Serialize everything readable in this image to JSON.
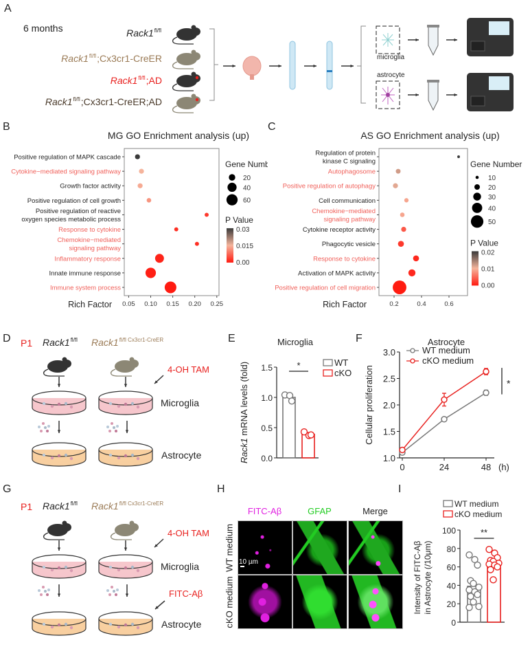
{
  "panel_labels": [
    "A",
    "B",
    "C",
    "D",
    "E",
    "F",
    "G",
    "H",
    "I"
  ],
  "panel_a": {
    "time": "6 months",
    "genotypes": [
      {
        "name": "Rack1",
        "sup": "fl/fl",
        "suffix": "",
        "color": "#222222"
      },
      {
        "name": "Rack1",
        "sup": "fl/fl",
        "suffix": ";Cx3cr1-CreER",
        "color": "#9a7a55"
      },
      {
        "name": "Rack1",
        "sup": "fl/fl",
        "suffix": ";AD",
        "color": "#e8201e"
      },
      {
        "name": "Rack1",
        "sup": "fl/fl",
        "suffix": ";Cx3cr1-CreER;AD",
        "color": "#4a3a2a"
      }
    ],
    "microglia": "microglia",
    "astrocyte": "astrocyte"
  },
  "panel_d": {
    "age": "P1",
    "geno1": {
      "name": "Rack1",
      "sup": "fl/fl"
    },
    "geno2": {
      "name": "Rack1",
      "sup": "fl/fl Cx3cr1-CreER"
    },
    "treatment": "4-OH TAM",
    "microglia": "Microglia",
    "astrocyte": "Astrocyte"
  },
  "panel_g": {
    "age": "P1",
    "geno1": {
      "name": "Rack1",
      "sup": "fl/fl"
    },
    "geno2": {
      "name": "Rack1",
      "sup": "fl/fl Cx3cr1-CreER"
    },
    "treatment": "4-OH TAM",
    "treatment2": "FITC-Aβ",
    "microglia": "Microglia",
    "astrocyte": "Astrocyte"
  },
  "panel_h": {
    "columns": [
      {
        "label": "FITC-Aβ",
        "color": "#e020e0"
      },
      {
        "label": "GFAP",
        "color": "#22cc22"
      },
      {
        "label": "Merge",
        "color": "#222222"
      }
    ],
    "rows": [
      "WT medium",
      "cKO medium"
    ],
    "scale_bar": "10 µm"
  },
  "colors": {
    "red": "#e8201e",
    "highlight_label": "#f0605a",
    "grey": "#777777",
    "pval_low": "#ff1a10",
    "pval_mid": "#f5b49c",
    "pval_high": "#3a3a3a"
  },
  "chart_data": [
    {
      "panel": "B",
      "type": "scatter",
      "title": "MG GO Enrichment analysis (up)",
      "xlabel": "Rich Factor",
      "xlim": [
        0.04,
        0.255
      ],
      "xticks": [
        0.05,
        0.1,
        0.15,
        0.2,
        0.25
      ],
      "xtick_labels": [
        "0.05",
        "0.10",
        "0.15",
        "0.20",
        "0.25"
      ],
      "size_legend_title": "Gene Number",
      "size_legend": [
        20,
        40,
        60
      ],
      "color_legend_title": "P Value",
      "color_range": [
        0,
        0.03
      ],
      "color_ticks": [
        "0.03",
        "0.015",
        "0.00"
      ],
      "points": [
        {
          "term": [
            "Positive regulation of MAPK cascade"
          ],
          "highlight": false,
          "rich_factor": 0.07,
          "gene_number": 12,
          "p_value": 0.03
        },
        {
          "term": [
            "Cytokine−mediated signaling pathway"
          ],
          "highlight": true,
          "rich_factor": 0.079,
          "gene_number": 12,
          "p_value": 0.015
        },
        {
          "term": [
            "Growth factor activity"
          ],
          "highlight": false,
          "rich_factor": 0.076,
          "gene_number": 12,
          "p_value": 0.014
        },
        {
          "term": [
            "Positive regulation of cell growth"
          ],
          "highlight": false,
          "rich_factor": 0.096,
          "gene_number": 10,
          "p_value": 0.012
        },
        {
          "term": [
            "Positive regulation of reactive",
            "oxygen species metabolic process"
          ],
          "highlight": false,
          "rich_factor": 0.227,
          "gene_number": 8,
          "p_value": 0.003
        },
        {
          "term": [
            "Response to cytokine"
          ],
          "highlight": true,
          "rich_factor": 0.158,
          "gene_number": 8,
          "p_value": 0.002
        },
        {
          "term": [
            "Chemokine−mediated",
            "signaling pathway"
          ],
          "highlight": true,
          "rich_factor": 0.205,
          "gene_number": 8,
          "p_value": 0.002
        },
        {
          "term": [
            "Inflammatory response"
          ],
          "highlight": true,
          "rich_factor": 0.12,
          "gene_number": 38,
          "p_value": 0.001
        },
        {
          "term": [
            "Innate immune response"
          ],
          "highlight": false,
          "rich_factor": 0.1,
          "gene_number": 52,
          "p_value": 0.0005
        },
        {
          "term": [
            "Immune system process"
          ],
          "highlight": true,
          "rich_factor": 0.145,
          "gene_number": 66,
          "p_value": 0.0001
        }
      ]
    },
    {
      "panel": "C",
      "type": "scatter",
      "title": "AS GO Enrichment analysis (up)",
      "xlabel": "Rich Factor",
      "xlim": [
        0.09,
        0.735
      ],
      "xticks": [
        0.2,
        0.4,
        0.6
      ],
      "xtick_labels": [
        "0.2",
        "0.4",
        "0.6"
      ],
      "size_legend_title": "Gene Number",
      "size_legend": [
        10,
        20,
        30,
        40,
        50
      ],
      "color_legend_title": "P Value",
      "color_range": [
        0,
        0.02
      ],
      "color_ticks": [
        "0.02",
        "0.01",
        "0.00"
      ],
      "points": [
        {
          "term": [
            "Regulation of protein",
            "kinase C signaling"
          ],
          "highlight": false,
          "rich_factor": 0.67,
          "gene_number": 8,
          "p_value": 0.02
        },
        {
          "term": [
            "Autophagosome"
          ],
          "highlight": true,
          "rich_factor": 0.23,
          "gene_number": 17,
          "p_value": 0.012
        },
        {
          "term": [
            "Positive regulation of autophagy"
          ],
          "highlight": true,
          "rich_factor": 0.21,
          "gene_number": 18,
          "p_value": 0.011
        },
        {
          "term": [
            "Cell communication"
          ],
          "highlight": false,
          "rich_factor": 0.29,
          "gene_number": 15,
          "p_value": 0.009
        },
        {
          "term": [
            "Chemokine−mediated",
            "signaling pathway"
          ],
          "highlight": true,
          "rich_factor": 0.26,
          "gene_number": 16,
          "p_value": 0.009
        },
        {
          "term": [
            "Cytokine receptor activity"
          ],
          "highlight": false,
          "rich_factor": 0.27,
          "gene_number": 18,
          "p_value": 0.004
        },
        {
          "term": [
            "Phagocytic vesicle"
          ],
          "highlight": false,
          "rich_factor": 0.25,
          "gene_number": 22,
          "p_value": 0.002
        },
        {
          "term": [
            "Response to cytokine"
          ],
          "highlight": true,
          "rich_factor": 0.36,
          "gene_number": 22,
          "p_value": 0.001
        },
        {
          "term": [
            "Activation of MAPK activity"
          ],
          "highlight": false,
          "rich_factor": 0.33,
          "gene_number": 27,
          "p_value": 0.001
        },
        {
          "term": [
            "Positive regulation of cell migration"
          ],
          "highlight": true,
          "rich_factor": 0.24,
          "gene_number": 55,
          "p_value": 0.0001
        }
      ]
    },
    {
      "panel": "E",
      "type": "bar",
      "title": "Microglia",
      "ylabel_italic": "Rack1",
      "ylabel": " mRNA levels (fold)",
      "ylim": [
        0,
        1.5
      ],
      "yticks": [
        "0.0",
        "0.5",
        "1.0",
        "1.5"
      ],
      "significance": "*",
      "series": [
        {
          "name": "WT",
          "mean": 1.0,
          "points": [
            1.04,
            1.03,
            0.94
          ],
          "color": "#777777"
        },
        {
          "name": "cKO",
          "mean": 0.39,
          "points": [
            0.43,
            0.37,
            0.38
          ],
          "color": "#e8201e"
        }
      ]
    },
    {
      "panel": "F",
      "type": "line",
      "title": "Astrocyte",
      "ylabel": "Cellular proliferation",
      "xunit": "(h)",
      "x": [
        0,
        24,
        48
      ],
      "xtick_labels": [
        "0",
        "24",
        "48"
      ],
      "ylim": [
        1.0,
        3.0
      ],
      "yticks": [
        "1.0",
        "1.5",
        "2.0",
        "2.5",
        "3.0"
      ],
      "significance": "*",
      "series": [
        {
          "name": "WT medium",
          "values": [
            1.1,
            1.73,
            2.23
          ],
          "errors": [
            0.03,
            0.04,
            0.05
          ],
          "color": "#777777"
        },
        {
          "name": "cKO medium",
          "values": [
            1.15,
            2.1,
            2.63
          ],
          "errors": [
            0.03,
            0.12,
            0.06
          ],
          "color": "#e8201e"
        }
      ]
    },
    {
      "panel": "I",
      "type": "bar",
      "ylabel": [
        "Intensity of FITC-Aβ",
        "in Astrocyte (/10μm)"
      ],
      "ylim": [
        0,
        100
      ],
      "yticks": [
        "0",
        "20",
        "40",
        "60",
        "80",
        "100"
      ],
      "significance": "**",
      "series": [
        {
          "name": "WT medium",
          "mean": 39,
          "points": [
            73,
            68,
            62,
            45,
            42,
            38,
            35,
            33,
            30,
            28,
            22,
            17,
            16
          ],
          "color": "#777777"
        },
        {
          "name": "cKO medium",
          "mean": 64,
          "points": [
            79,
            75,
            70,
            67,
            66,
            64,
            63,
            62,
            60,
            57,
            46
          ],
          "color": "#e8201e"
        }
      ]
    }
  ]
}
